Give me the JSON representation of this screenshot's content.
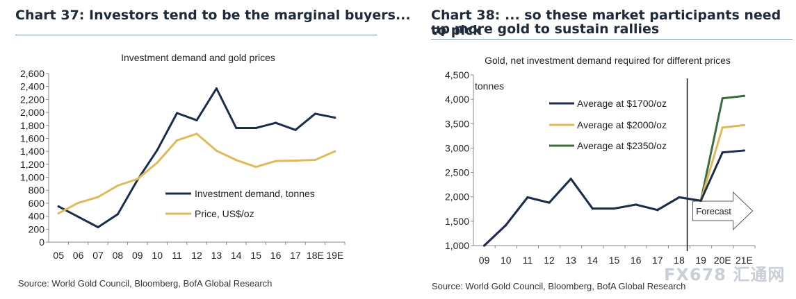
{
  "left_panel": {
    "heading": "Chart 37: Investors tend to be the marginal buyers...",
    "source": "Source: World Gold Council, Bloomberg, BofA Global Research"
  },
  "right_panel": {
    "heading_line1": "Chart 38: ... so these market participants need to pick",
    "heading_line2": "up more gold to sustain rallies",
    "source": "Source: World Gold Council, Bloomberg, BofA Global Research"
  },
  "watermark": "FX678 汇通网",
  "chart_data": [
    {
      "type": "line",
      "title": "Investment demand and gold prices",
      "categories": [
        "05",
        "06",
        "07",
        "08",
        "09",
        "10",
        "11",
        "12",
        "13",
        "14",
        "15",
        "16",
        "17",
        "18E",
        "19E"
      ],
      "ylim": [
        0,
        2600
      ],
      "yticks": [
        "0",
        "200",
        "400",
        "600",
        "800",
        "1,000",
        "1,200",
        "1,400",
        "1,600",
        "1,800",
        "2,000",
        "2,200",
        "2,400",
        "2,600"
      ],
      "legend_position": "center-right",
      "series": [
        {
          "name": "Investment demand, tonnes",
          "color": "#1b2d4f",
          "values": [
            550,
            390,
            230,
            430,
            960,
            1420,
            1990,
            1880,
            2370,
            1760,
            1760,
            1840,
            1730,
            1980,
            1920
          ]
        },
        {
          "name": "Price, US$/oz",
          "color": "#e0b95a",
          "values": [
            445,
            605,
            695,
            872,
            973,
            1225,
            1570,
            1670,
            1410,
            1265,
            1160,
            1250,
            1257,
            1268,
            1400
          ]
        }
      ]
    },
    {
      "type": "line",
      "title": "Gold, net investment demand required for different prices",
      "ylabel": "tonnes",
      "categories": [
        "09",
        "10",
        "11",
        "12",
        "13",
        "14",
        "15",
        "16",
        "17",
        "18",
        "19",
        "20E",
        "21E"
      ],
      "ylim": [
        1000,
        4500
      ],
      "yticks": [
        "1,000",
        "1,500",
        "2,000",
        "2,500",
        "3,000",
        "3,500",
        "4,000",
        "4,500"
      ],
      "legend_position": "top-center",
      "annotation": "Forecast",
      "series": [
        {
          "name": "Average at $1700/oz",
          "color": "#1b2d4f",
          "values": [
            1000,
            1420,
            1990,
            1880,
            2370,
            1760,
            1760,
            1840,
            1730,
            1990,
            1920,
            2910,
            2950
          ]
        },
        {
          "name": "Average at $2000/oz",
          "color": "#e0b95a",
          "values": [
            1000,
            1420,
            1990,
            1880,
            2370,
            1760,
            1760,
            1840,
            1730,
            1990,
            1920,
            3420,
            3470
          ]
        },
        {
          "name": "Average at $2350/oz",
          "color": "#3c6b3c",
          "values": [
            1000,
            1420,
            1990,
            1880,
            2370,
            1760,
            1760,
            1840,
            1730,
            1990,
            1920,
            4020,
            4070
          ]
        }
      ]
    }
  ]
}
